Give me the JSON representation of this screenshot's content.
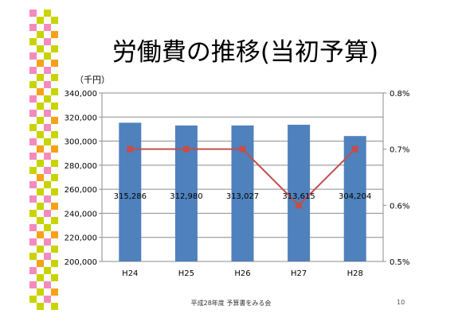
{
  "slide": {
    "title": "労働費の推移(当初予算)",
    "footer": "平成28年度 予算書をみる会",
    "page_number": "10"
  },
  "colors": {
    "bar": "#4f81bd",
    "line": "#c0504d",
    "deco_pink": "#f48bbd",
    "deco_yellow": "#c8d400",
    "deco_orange": "#f7a11a"
  },
  "chart_data": {
    "type": "bar",
    "categories": [
      "H24",
      "H25",
      "H26",
      "H27",
      "H28"
    ],
    "y_unit_label": "（千円）",
    "ylim": [
      200000,
      340000
    ],
    "y_ticks": [
      "200,000",
      "220,000",
      "240,000",
      "260,000",
      "280,000",
      "300,000",
      "320,000",
      "340,000"
    ],
    "y2lim": [
      0.5,
      0.8
    ],
    "y2_ticks": [
      "0.5%",
      "0.6%",
      "0.7%",
      "0.8%"
    ],
    "grid": true,
    "series": [
      {
        "kind": "bar",
        "values": [
          315286,
          312980,
          313027,
          313615,
          304204
        ],
        "labels": [
          "315,286",
          "312,980",
          "313,027",
          "313,615",
          "304,204"
        ]
      },
      {
        "kind": "line",
        "axis": "secondary",
        "values": [
          0.7,
          0.7,
          0.7,
          0.6,
          0.7
        ]
      }
    ]
  }
}
